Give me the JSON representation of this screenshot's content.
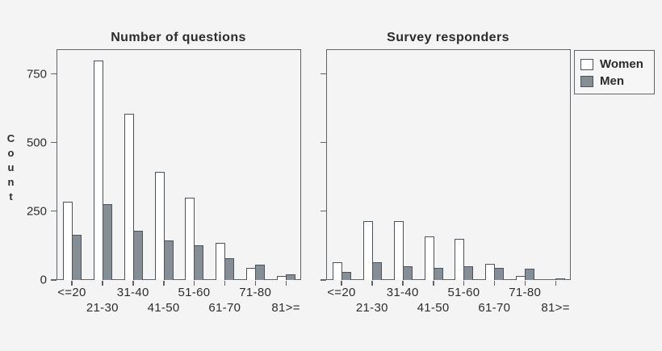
{
  "figure": {
    "background": "#f4f4f4",
    "ylabel": "Count",
    "legend": {
      "items": [
        {
          "label": "Women",
          "color": "#ffffff"
        },
        {
          "label": "Men",
          "color": "#868e95"
        }
      ]
    },
    "colors": {
      "women_fill": "#ffffff",
      "men_fill": "#868e95",
      "bar_border": "#4d5358",
      "panel_border": "#5f6468",
      "text": "#2d2d2d"
    }
  },
  "chart_data": [
    {
      "type": "bar",
      "title": "Number of questions",
      "xlabel": "",
      "ylabel": "Count",
      "categories": [
        "<=20",
        "21-30",
        "31-40",
        "41-50",
        "51-60",
        "61-70",
        "71-80",
        "81>="
      ],
      "series": [
        {
          "name": "Women",
          "values": [
            285,
            800,
            605,
            395,
            300,
            135,
            45,
            15
          ]
        },
        {
          "name": "Men",
          "values": [
            165,
            275,
            180,
            145,
            125,
            80,
            55,
            20
          ]
        }
      ],
      "yticks": [
        0,
        250,
        500,
        750
      ],
      "ylim": [
        0,
        840
      ],
      "grid": false,
      "legend_position": "outside-top-right"
    },
    {
      "type": "bar",
      "title": "Survey responders",
      "xlabel": "",
      "ylabel": "",
      "categories": [
        "<=20",
        "21-30",
        "31-40",
        "41-50",
        "51-60",
        "61-70",
        "71-80",
        "81>="
      ],
      "series": [
        {
          "name": "Women",
          "values": [
            65,
            215,
            215,
            160,
            150,
            60,
            15,
            0
          ]
        },
        {
          "name": "Men",
          "values": [
            30,
            65,
            50,
            45,
            50,
            45,
            40,
            5
          ]
        }
      ],
      "yticks": [
        0,
        250,
        500,
        750
      ],
      "ylim": [
        0,
        840
      ],
      "grid": false,
      "legend_position": "outside-top-right"
    }
  ]
}
